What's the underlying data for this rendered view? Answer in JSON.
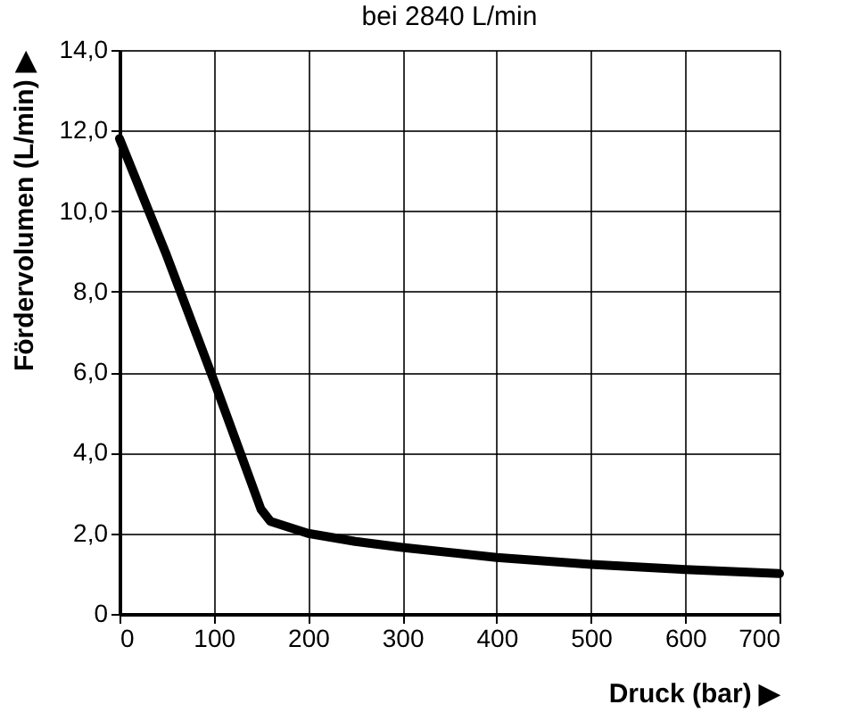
{
  "chart_data": {
    "type": "line",
    "title": "bei 2840 L/min",
    "xlabel": "Druck (bar) ▶",
    "ylabel": "Fördervolumen (L/min) ▶",
    "x": [
      0,
      50,
      100,
      150,
      160,
      200,
      250,
      300,
      400,
      500,
      600,
      700
    ],
    "series": [
      {
        "color": "#000000",
        "values": [
          11.8,
          8.9,
          5.8,
          2.6,
          2.3,
          2.0,
          1.8,
          1.65,
          1.4,
          1.23,
          1.1,
          1.0
        ]
      }
    ],
    "xlim": [
      0,
      700
    ],
    "xticks": [
      0,
      100,
      200,
      300,
      400,
      500,
      600,
      700
    ],
    "ylim": [
      0,
      14
    ],
    "yticks": [
      {
        "value": 0,
        "label": "0"
      },
      {
        "value": 2,
        "label": "2,0"
      },
      {
        "value": 4,
        "label": "4,0"
      },
      {
        "value": 6,
        "label": "6,0"
      },
      {
        "value": 8,
        "label": "8,0"
      },
      {
        "value": 10,
        "label": "10,0"
      },
      {
        "value": 12,
        "label": "12,0"
      },
      {
        "value": 14,
        "label": "14,0"
      }
    ],
    "grid": true,
    "marker": "none",
    "line_style": "solid"
  }
}
